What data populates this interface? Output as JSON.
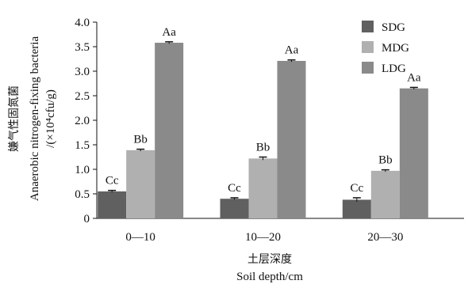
{
  "chart_data": {
    "type": "bar",
    "categories": [
      "0—10",
      "10—20",
      "20—30"
    ],
    "series": [
      {
        "name": "SDG",
        "color": "#606060",
        "values": [
          0.55,
          0.4,
          0.38
        ],
        "errors": [
          0.02,
          0.02,
          0.04
        ],
        "labels": [
          "Cc",
          "Cc",
          "Cc"
        ]
      },
      {
        "name": "MDG",
        "color": "#b0b0b0",
        "values": [
          1.39,
          1.22,
          0.97
        ],
        "errors": [
          0.02,
          0.03,
          0.02
        ],
        "labels": [
          "Bb",
          "Bb",
          "Bb"
        ]
      },
      {
        "name": "LDG",
        "color": "#8a8a8a",
        "values": [
          3.58,
          3.21,
          2.65
        ],
        "errors": [
          0.02,
          0.02,
          0.02
        ],
        "labels": [
          "Aa",
          "Aa",
          "Aa"
        ]
      }
    ],
    "ylim": [
      0,
      4.0
    ],
    "yticks": [
      "0",
      "0.5",
      "1.0",
      "1.5",
      "2.0",
      "2.5",
      "3.0",
      "3.5",
      "4.0"
    ],
    "ylabel_cn": "嫌气性固氮菌",
    "ylabel_en": "Anaerobic nitrogen-fixing bacteria",
    "ylabel_unit": "/(×10⁴cfu/g)",
    "xlabel_cn": "土层深度",
    "xlabel_en": "Soil depth/cm",
    "legend_position": "top-right",
    "grid": false
  }
}
